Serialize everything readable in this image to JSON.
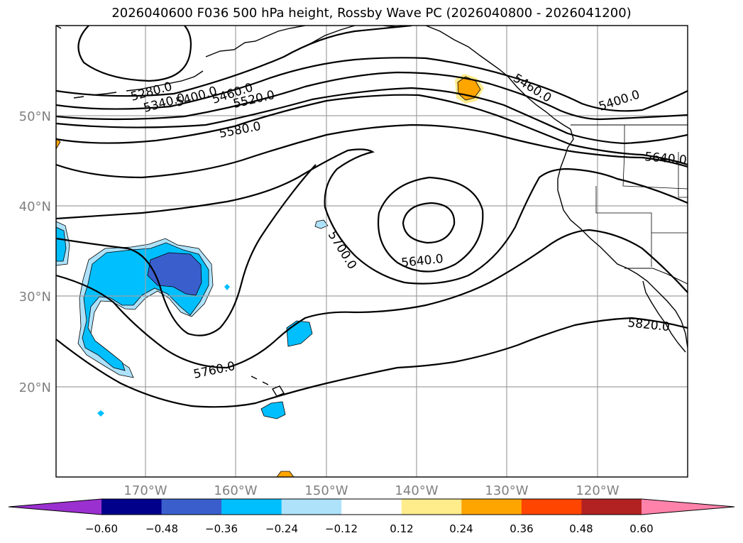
{
  "title": "2026040600 F036 500 hPa height, Rossby Wave PC (2026040800 - 2026041200)",
  "latitude_labels": [
    "50°N",
    "40°N",
    "30°N",
    "20°N"
  ],
  "longitude_labels": [
    "170°W",
    "160°W",
    "150°W",
    "140°W",
    "130°W",
    "120°W"
  ],
  "contour_labels": [
    "5280.0",
    "5340.0",
    "5400.0",
    "5460.0",
    "5520.0",
    "5580.0",
    "5460.0",
    "5400.0",
    "5640.0",
    "5700.0",
    "5640.0",
    "5760.0",
    "5820.0"
  ],
  "colorbar": {
    "tick_labels": [
      "−0.60",
      "−0.48",
      "−0.36",
      "−0.24",
      "−0.12",
      "0.12",
      "0.24",
      "0.36",
      "0.48",
      "0.60"
    ],
    "colors": [
      "#9b30d0",
      "#00008b",
      "#3a5fcd",
      "#00bfff",
      "#aee2fb",
      "#ffffff",
      "#ffec8b",
      "#ffa500",
      "#ff4500",
      "#b22222",
      "#ff82ab"
    ]
  },
  "colors": {
    "gridline": "#a0a0a0",
    "contour": "#000000",
    "tick_text": "#808080"
  }
}
